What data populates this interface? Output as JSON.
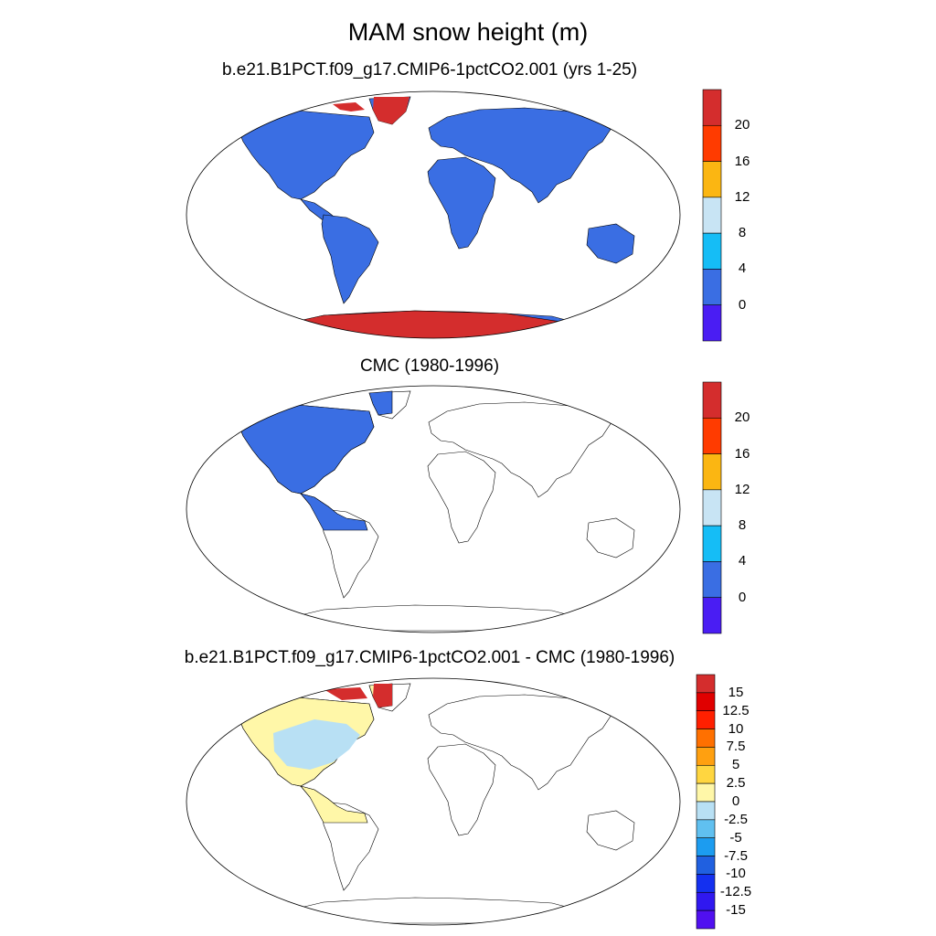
{
  "title": "MAM snow height (m)",
  "panels": [
    {
      "title": "b.e21.B1PCT.f09_g17.CMIP6-1pctCO2.001 (yrs 1-25)",
      "colorbar": {
        "labels": [
          "20",
          "16",
          "12",
          "8",
          "4",
          "0"
        ],
        "colors": [
          "#d42d2d",
          "#ff3b00",
          "#fbb612",
          "#c8e4f4",
          "#15bdf6",
          "#3a6ee3",
          "#4a1df3"
        ]
      }
    },
    {
      "title": "CMC (1980-1996)",
      "colorbar": {
        "labels": [
          "20",
          "16",
          "12",
          "8",
          "4",
          "0"
        ],
        "colors": [
          "#d42d2d",
          "#ff3b00",
          "#fbb612",
          "#c8e4f4",
          "#15bdf6",
          "#3a6ee3",
          "#4a1df3"
        ]
      }
    },
    {
      "title": "b.e21.B1PCT.f09_g17.CMIP6-1pctCO2.001 - CMC (1980-1996)",
      "colorbar": {
        "labels": [
          "15",
          "12.5",
          "10",
          "7.5",
          "5",
          "2.5",
          "0",
          "-2.5",
          "-5",
          "-7.5",
          "-10",
          "-12.5",
          "-15"
        ],
        "colors": [
          "#d42d2d",
          "#e00000",
          "#ff2000",
          "#ff7000",
          "#ffa010",
          "#ffd640",
          "#fff7a8",
          "#b8e0f4",
          "#60c0f0",
          "#1c9cf0",
          "#2060e0",
          "#1430f0",
          "#3018f0",
          "#5010f0"
        ]
      }
    }
  ],
  "colors": {
    "land_fill": "#3a6ee3",
    "ice_fill": "#d42d2d",
    "diff_positive": "#fff7a8",
    "diff_negative": "#b8e0f4",
    "coast": "#000000"
  }
}
